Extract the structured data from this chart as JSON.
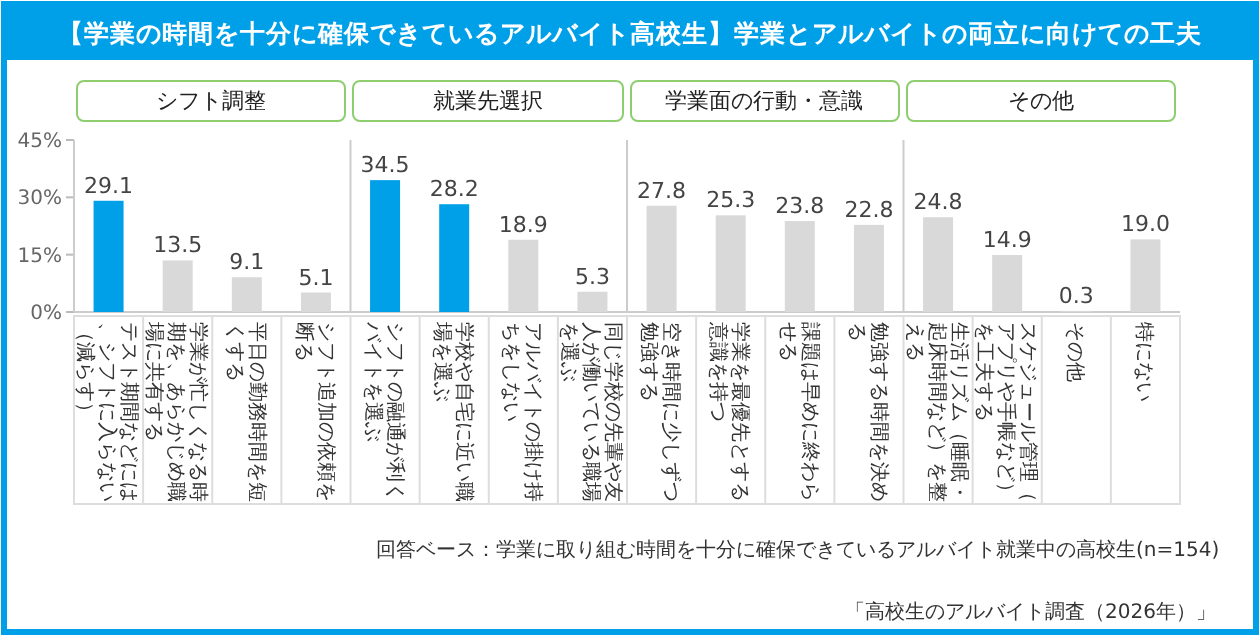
{
  "chart_data": {
    "type": "bar",
    "title": "【学業の時間を十分に確保できているアルバイト高校生】学業とアルバイトの両立に向けての工夫",
    "categories": [
      "テスト期間などには、シフトに入らない（減らす）",
      "学業が忙しくなる時期を、あらかじめ職場に共有する",
      "平日の勤務時間を短くする",
      "シフト追加の依頼を断る",
      "シフトの融通が利くバイトを選ぶ",
      "学校や自宅に近い職場を選ぶ",
      "アルバイトの掛け持ちをしない",
      "同じ学校の先輩や友人が働いている職場を選ぶ",
      "空き時間に少しずつ勉強する",
      "学業を最優先とする意識を持つ",
      "課題は早めに終わらせる",
      "勉強する時間を決める",
      "生活リズム（睡眠・起床時間など）を整える",
      "スケジュール管理（アプリや手帳など）を工夫する",
      "その他",
      "特にない"
    ],
    "values": [
      29.1,
      13.5,
      9.1,
      5.1,
      34.5,
      28.2,
      18.9,
      5.3,
      27.8,
      25.3,
      23.8,
      22.8,
      24.8,
      14.9,
      0.3,
      19.0
    ],
    "colors": [
      "#00a0e9",
      "#d9d9d9",
      "#d9d9d9",
      "#d9d9d9",
      "#00a0e9",
      "#00a0e9",
      "#d9d9d9",
      "#d9d9d9",
      "#d9d9d9",
      "#d9d9d9",
      "#d9d9d9",
      "#d9d9d9",
      "#d9d9d9",
      "#d9d9d9",
      "#d9d9d9",
      "#d9d9d9"
    ],
    "value_labels": [
      "29.1",
      "13.5",
      "9.1",
      "5.1",
      "34.5",
      "28.2",
      "18.9",
      "5.3",
      "27.8",
      "25.3",
      "23.8",
      "22.8",
      "24.8",
      "14.9",
      "0.3",
      "19.0"
    ],
    "ylim": [
      0,
      45
    ],
    "yticks": [
      {
        "value": 0,
        "label": "0%"
      },
      {
        "value": 15,
        "label": "15%"
      },
      {
        "value": 30,
        "label": "30%"
      },
      {
        "value": 45,
        "label": "45%"
      }
    ],
    "annotations": [
      "シフト調整",
      "就業先選択",
      "学業面の行動・意識",
      "その他",
      "回答ベース：学業に取り組む時間を十分に確保できているアルバイト就業中の高校生(n=154)",
      "「高校生のアルバイト調査（2026年）」"
    ]
  }
}
